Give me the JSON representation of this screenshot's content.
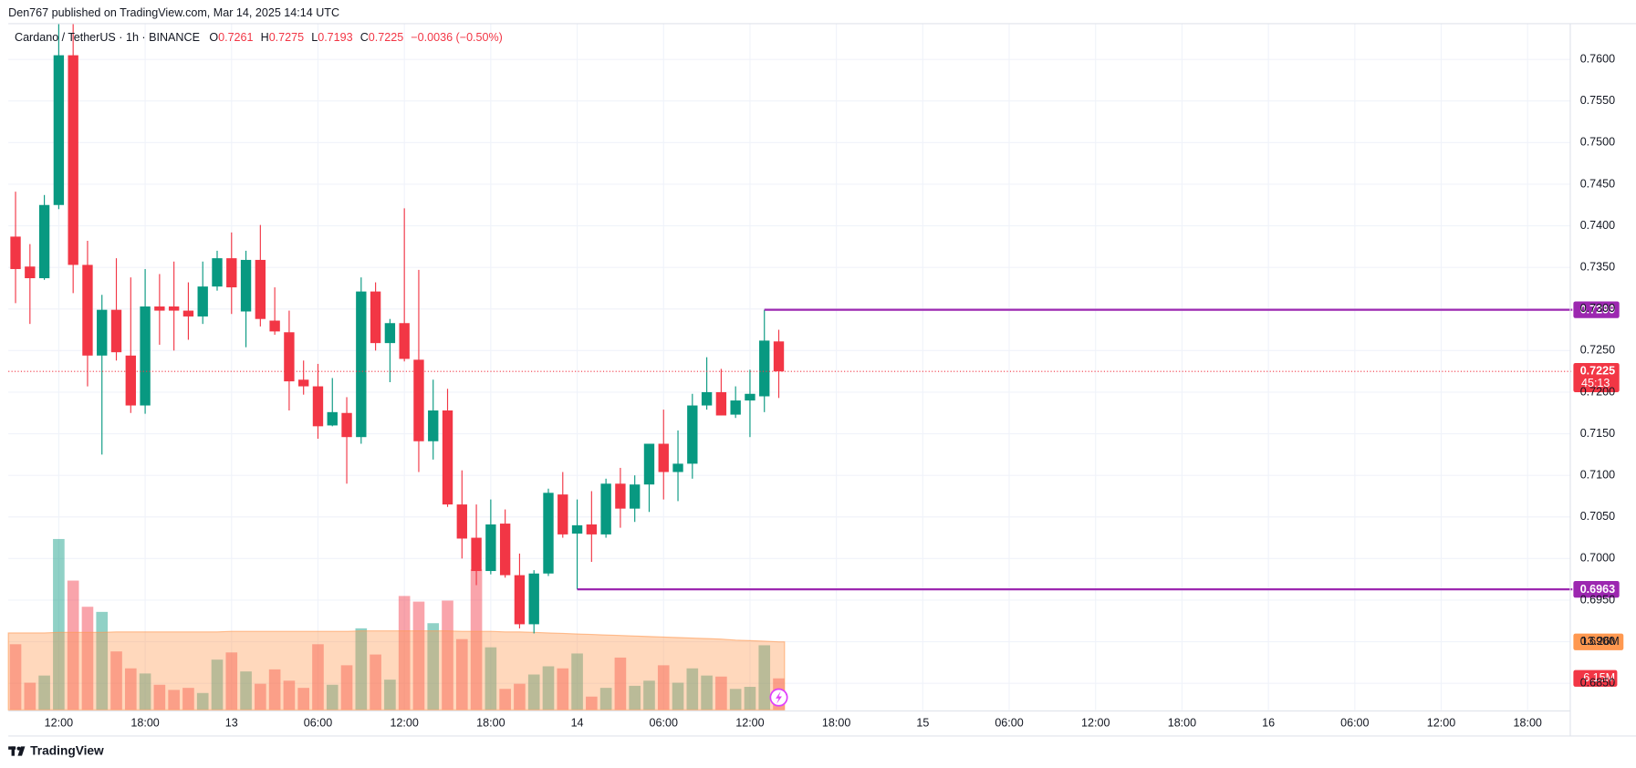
{
  "header": {
    "published": "Den767 published on TradingView.com, Mar 14, 2025 14:14 UTC"
  },
  "legend": {
    "symbol": "Cardano / TetherUS · 1h · BINANCE",
    "ohlc": [
      {
        "key": "O",
        "value": "0.7261"
      },
      {
        "key": "H",
        "value": "0.7275"
      },
      {
        "key": "L",
        "value": "0.7193"
      },
      {
        "key": "C",
        "value": "0.7225"
      }
    ],
    "change": "−0.0036 (−0.50%)"
  },
  "chart_data": {
    "type": "candlestick",
    "x": [
      9,
      10,
      11,
      12,
      13,
      14,
      15,
      16,
      17,
      18,
      19,
      20,
      21,
      22,
      23,
      24,
      25,
      26,
      27,
      28,
      29,
      30,
      31,
      32,
      33,
      34,
      35,
      36,
      37,
      38,
      39,
      40,
      41,
      42,
      43,
      44,
      45,
      46,
      47,
      48,
      49,
      50,
      51,
      52,
      53,
      54,
      55,
      56,
      57,
      58,
      59,
      60,
      61,
      62
    ],
    "open": [
      0.7387,
      0.7351,
      0.7337,
      0.7425,
      0.7605,
      0.7353,
      0.7244,
      0.7299,
      0.7244,
      0.7184,
      0.7303,
      0.7303,
      0.7298,
      0.7291,
      0.7327,
      0.7361,
      0.7297,
      0.7359,
      0.7286,
      0.7272,
      0.7215,
      0.7207,
      0.716,
      0.7175,
      0.7146,
      0.7321,
      0.7259,
      0.7283,
      0.7239,
      0.7141,
      0.7178,
      0.7065,
      0.7025,
      0.6985,
      0.7042,
      0.698,
      0.6921,
      0.6982,
      0.7077,
      0.703,
      0.7041,
      0.7029,
      0.709,
      0.706,
      0.7089,
      0.7138,
      0.7104,
      0.7114,
      0.7184,
      0.72,
      0.7173,
      0.719,
      0.7195,
      0.7261
    ],
    "high": [
      0.7441,
      0.7378,
      0.7437,
      0.7643,
      0.7643,
      0.7382,
      0.7317,
      0.7361,
      0.7338,
      0.7348,
      0.7342,
      0.7357,
      0.7332,
      0.7357,
      0.737,
      0.7392,
      0.737,
      0.7401,
      0.7326,
      0.7298,
      0.7238,
      0.7234,
      0.7217,
      0.7194,
      0.7338,
      0.7332,
      0.7288,
      0.7421,
      0.7347,
      0.7215,
      0.7204,
      0.7106,
      0.7065,
      0.7071,
      0.7059,
      0.7006,
      0.6986,
      0.7084,
      0.7104,
      0.7071,
      0.7081,
      0.7096,
      0.7109,
      0.71,
      0.7138,
      0.7179,
      0.7154,
      0.7198,
      0.7242,
      0.7228,
      0.7207,
      0.7227,
      0.7299,
      0.7275
    ],
    "low": [
      0.7307,
      0.7282,
      0.7335,
      0.742,
      0.7319,
      0.7207,
      0.7125,
      0.7238,
      0.7175,
      0.7174,
      0.7257,
      0.725,
      0.7263,
      0.7282,
      0.7322,
      0.7294,
      0.7254,
      0.7279,
      0.7269,
      0.7178,
      0.7197,
      0.7144,
      0.7159,
      0.709,
      0.7138,
      0.725,
      0.7212,
      0.7237,
      0.7104,
      0.7119,
      0.7062,
      0.7,
      0.6968,
      0.6981,
      0.6977,
      0.6916,
      0.691,
      0.6979,
      0.7025,
      0.6963,
      0.6996,
      0.7025,
      0.7037,
      0.7044,
      0.7056,
      0.7071,
      0.7069,
      0.7096,
      0.7179,
      0.7172,
      0.7169,
      0.7146,
      0.7176,
      0.7193
    ],
    "close": [
      0.7348,
      0.7337,
      0.7425,
      0.7605,
      0.7353,
      0.7244,
      0.7299,
      0.7248,
      0.7184,
      0.7303,
      0.7298,
      0.7298,
      0.7291,
      0.7327,
      0.7361,
      0.7326,
      0.7359,
      0.7288,
      0.7273,
      0.7213,
      0.7207,
      0.7159,
      0.7176,
      0.7146,
      0.7321,
      0.7259,
      0.7283,
      0.724,
      0.7141,
      0.7178,
      0.7065,
      0.7024,
      0.6985,
      0.7041,
      0.698,
      0.6921,
      0.6982,
      0.7079,
      0.7029,
      0.704,
      0.7029,
      0.709,
      0.706,
      0.7089,
      0.7138,
      0.7104,
      0.7114,
      0.7184,
      0.72,
      0.7172,
      0.719,
      0.7198,
      0.7262,
      0.7225
    ],
    "up_color": "#089981",
    "down_color": "#f23645",
    "volume": {
      "values": [
        12.8,
        5.3,
        6.7,
        33.3,
        25.2,
        20.1,
        19.1,
        11.4,
        8.1,
        7.1,
        4.9,
        3.9,
        4.3,
        3.3,
        9.8,
        11.2,
        7.5,
        5.1,
        7.9,
        5.7,
        4.3,
        12.8,
        4.9,
        8.7,
        15.9,
        10.8,
        5.9,
        22.2,
        21.1,
        16.9,
        21.3,
        13.8,
        27.4,
        12.2,
        4.1,
        5.1,
        6.9,
        8.5,
        8.1,
        11.0,
        2.6,
        4.3,
        10.2,
        4.7,
        5.7,
        8.7,
        5.3,
        8.1,
        6.7,
        6.5,
        4.1,
        4.5,
        12.6,
        6.15
      ],
      "last_label": "6.15M",
      "ma": [
        15.0,
        15.0,
        15.0,
        15.1,
        15.1,
        15.1,
        15.1,
        15.2,
        15.2,
        15.2,
        15.2,
        15.2,
        15.2,
        15.2,
        15.2,
        15.3,
        15.3,
        15.3,
        15.3,
        15.3,
        15.3,
        15.3,
        15.3,
        15.3,
        15.4,
        15.4,
        15.4,
        15.4,
        15.4,
        15.4,
        15.4,
        15.3,
        15.3,
        15.3,
        15.2,
        15.2,
        15.1,
        15.0,
        14.9,
        14.8,
        14.7,
        14.6,
        14.5,
        14.4,
        14.3,
        14.2,
        14.1,
        14.0,
        13.9,
        13.8,
        13.6,
        13.5,
        13.4,
        13.26
      ],
      "ma_last_label": "13.26M",
      "ma_color": "#ff9850"
    },
    "y2lim": [
      0,
      133.7
    ],
    "xlim": [
      8.5,
      116.6
    ],
    "xticks": [
      {
        "value": 12,
        "label": "12:00"
      },
      {
        "value": 18,
        "label": "18:00"
      },
      {
        "value": 24,
        "label": "13"
      },
      {
        "value": 30,
        "label": "06:00"
      },
      {
        "value": 36,
        "label": "12:00"
      },
      {
        "value": 42,
        "label": "18:00"
      },
      {
        "value": 48,
        "label": "14"
      },
      {
        "value": 54,
        "label": "06:00"
      },
      {
        "value": 60,
        "label": "12:00"
      },
      {
        "value": 66,
        "label": "18:00"
      },
      {
        "value": 72,
        "label": "15"
      },
      {
        "value": 78,
        "label": "06:00"
      },
      {
        "value": 84,
        "label": "12:00"
      },
      {
        "value": 90,
        "label": "18:00"
      },
      {
        "value": 96,
        "label": "16"
      },
      {
        "value": 102,
        "label": "06:00"
      },
      {
        "value": 108,
        "label": "12:00"
      },
      {
        "value": 114,
        "label": "18:00"
      }
    ],
    "ylim": [
      0.6818,
      0.7643
    ],
    "yticks": [
      {
        "value": 0.685,
        "label": "0.6850"
      },
      {
        "value": 0.69,
        "label": "0.6900"
      },
      {
        "value": 0.695,
        "label": "0.6950"
      },
      {
        "value": 0.7,
        "label": "0.7000"
      },
      {
        "value": 0.705,
        "label": "0.7050"
      },
      {
        "value": 0.71,
        "label": "0.7100"
      },
      {
        "value": 0.715,
        "label": "0.7150"
      },
      {
        "value": 0.72,
        "label": "0.7200"
      },
      {
        "value": 0.725,
        "label": "0.7250"
      },
      {
        "value": 0.73,
        "label": "0.7300"
      },
      {
        "value": 0.735,
        "label": "0.7350"
      },
      {
        "value": 0.74,
        "label": "0.7400"
      },
      {
        "value": 0.745,
        "label": "0.7450"
      },
      {
        "value": 0.75,
        "label": "0.7500"
      },
      {
        "value": 0.755,
        "label": "0.7550"
      },
      {
        "value": 0.76,
        "label": "0.7600"
      }
    ],
    "grid": true,
    "levels": [
      {
        "value": 0.7299,
        "from": 61,
        "color": "#9c27b0"
      },
      {
        "value": 0.6963,
        "from": 48,
        "color": "#9c27b0"
      }
    ],
    "last_price": 0.7225,
    "countdown": "45:13"
  },
  "footer": {
    "brand": "TradingView"
  }
}
